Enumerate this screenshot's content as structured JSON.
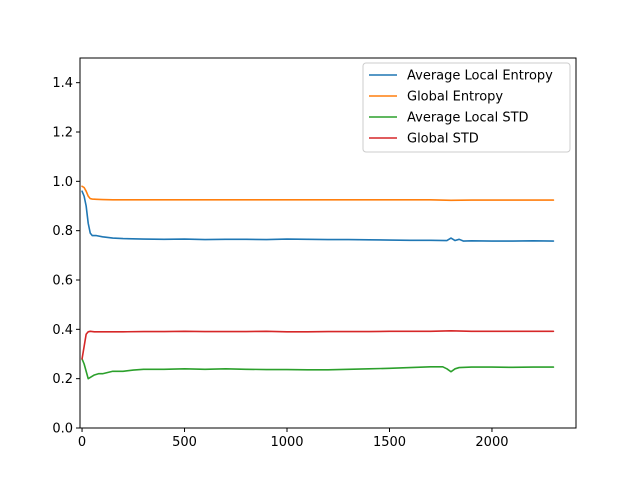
{
  "chart_data": {
    "type": "line",
    "title": "",
    "xlabel": "",
    "ylabel": "",
    "xlim": [
      -10,
      2410
    ],
    "ylim": [
      0.0,
      1.5
    ],
    "xticks": [
      0,
      500,
      1000,
      1500,
      2000
    ],
    "yticks": [
      0.0,
      0.2,
      0.4,
      0.6,
      0.8,
      1.0,
      1.2,
      1.4
    ],
    "xtick_labels": [
      "0",
      "500",
      "1000",
      "1500",
      "2000"
    ],
    "ytick_labels": [
      "0.0",
      "0.2",
      "0.4",
      "0.6",
      "0.8",
      "1.0",
      "1.2",
      "1.4"
    ],
    "grid": false,
    "legend": "top-right",
    "series": [
      {
        "name": "Average Local Entropy",
        "color": "#1f77b4",
        "x": [
          0,
          10,
          20,
          30,
          40,
          50,
          70,
          100,
          150,
          200,
          300,
          400,
          500,
          600,
          700,
          800,
          900,
          1000,
          1100,
          1200,
          1300,
          1400,
          1500,
          1600,
          1700,
          1780,
          1800,
          1820,
          1840,
          1860,
          1900,
          2000,
          2100,
          2200,
          2300
        ],
        "y": [
          0.96,
          0.94,
          0.9,
          0.83,
          0.79,
          0.78,
          0.78,
          0.775,
          0.77,
          0.768,
          0.766,
          0.765,
          0.766,
          0.764,
          0.765,
          0.765,
          0.764,
          0.766,
          0.765,
          0.764,
          0.764,
          0.763,
          0.762,
          0.761,
          0.761,
          0.76,
          0.77,
          0.76,
          0.765,
          0.758,
          0.759,
          0.758,
          0.758,
          0.759,
          0.758
        ]
      },
      {
        "name": "Global Entropy",
        "color": "#ff7f0e",
        "x": [
          0,
          10,
          20,
          30,
          40,
          50,
          70,
          100,
          150,
          200,
          300,
          400,
          500,
          600,
          700,
          800,
          900,
          1000,
          1100,
          1200,
          1300,
          1400,
          1500,
          1600,
          1700,
          1800,
          1900,
          2000,
          2100,
          2200,
          2300
        ],
        "y": [
          0.98,
          0.975,
          0.96,
          0.94,
          0.93,
          0.928,
          0.927,
          0.926,
          0.925,
          0.925,
          0.925,
          0.925,
          0.925,
          0.925,
          0.925,
          0.925,
          0.925,
          0.925,
          0.925,
          0.925,
          0.925,
          0.925,
          0.925,
          0.925,
          0.925,
          0.923,
          0.924,
          0.924,
          0.924,
          0.924,
          0.924
        ]
      },
      {
        "name": "Average Local STD",
        "color": "#2ca02c",
        "x": [
          0,
          10,
          20,
          30,
          40,
          60,
          80,
          100,
          150,
          200,
          250,
          300,
          400,
          500,
          600,
          700,
          800,
          900,
          1000,
          1100,
          1200,
          1300,
          1400,
          1500,
          1600,
          1700,
          1760,
          1780,
          1800,
          1820,
          1840,
          1900,
          2000,
          2100,
          2200,
          2300
        ],
        "y": [
          0.28,
          0.26,
          0.23,
          0.2,
          0.205,
          0.215,
          0.22,
          0.22,
          0.23,
          0.23,
          0.235,
          0.238,
          0.238,
          0.24,
          0.238,
          0.24,
          0.238,
          0.237,
          0.237,
          0.236,
          0.236,
          0.238,
          0.24,
          0.242,
          0.245,
          0.248,
          0.248,
          0.24,
          0.228,
          0.24,
          0.245,
          0.247,
          0.247,
          0.246,
          0.247,
          0.247
        ]
      },
      {
        "name": "Global STD",
        "color": "#d62728",
        "x": [
          0,
          10,
          20,
          30,
          40,
          60,
          100,
          200,
          300,
          400,
          500,
          600,
          700,
          800,
          900,
          1000,
          1100,
          1200,
          1300,
          1400,
          1500,
          1600,
          1700,
          1800,
          1900,
          2000,
          2100,
          2200,
          2300
        ],
        "y": [
          0.28,
          0.33,
          0.38,
          0.39,
          0.392,
          0.39,
          0.39,
          0.39,
          0.391,
          0.391,
          0.392,
          0.391,
          0.391,
          0.391,
          0.392,
          0.39,
          0.39,
          0.391,
          0.391,
          0.391,
          0.392,
          0.392,
          0.392,
          0.394,
          0.392,
          0.392,
          0.392,
          0.392,
          0.392
        ]
      }
    ]
  }
}
